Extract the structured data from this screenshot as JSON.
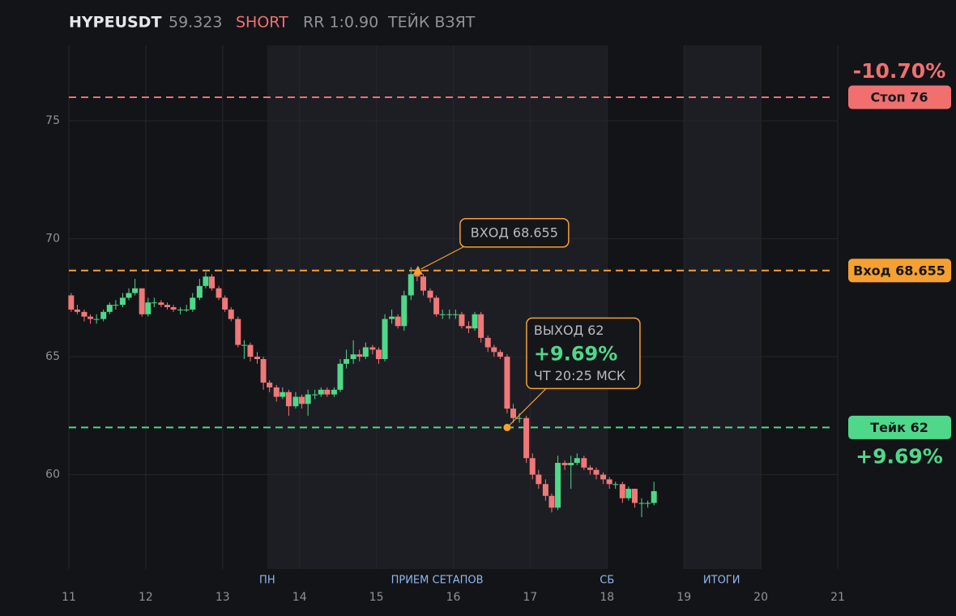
{
  "chart_data": {
    "type": "candlestick",
    "symbol": "HYPEUSDT",
    "price": "59.323",
    "side": "SHORT",
    "rr": "RR 1:0.90",
    "status": "ТЕЙК ВЗЯТ",
    "up_color": "#4fd88a",
    "down_color": "#f07878",
    "grid": true,
    "xlim": [
      11,
      21
    ],
    "xticks": [
      11,
      12,
      13,
      14,
      15,
      16,
      17,
      18,
      19,
      20,
      21
    ],
    "ylim": [
      56,
      78.2
    ],
    "yticks": [
      60,
      65,
      70,
      75
    ],
    "bands": [
      {
        "start": 13.58,
        "end": 18
      },
      {
        "start": 19,
        "end": 20
      }
    ],
    "band_labels": [
      {
        "x": 13.58,
        "text": "ПН"
      },
      {
        "x": 15.79,
        "text": "ПРИЕМ СЕТАПОВ"
      },
      {
        "x": 18,
        "text": "СБ"
      },
      {
        "x": 19.49,
        "text": "ИТОГИ"
      }
    ],
    "levels": [
      {
        "value": 76,
        "label": "Стоп 76",
        "color": "#f07070",
        "change": "-10.70%"
      },
      {
        "value": 68.655,
        "label": "Вход 68.655",
        "color": "#f5a030"
      },
      {
        "value": 62,
        "label": "Тейк 62",
        "color": "#4fd88a",
        "change": "+9.69%"
      }
    ],
    "entry": {
      "x": 15.54,
      "value": 68.655,
      "label": "ВХОД 68.655",
      "color": "#f5a030"
    },
    "exit": {
      "x": 16.7,
      "value": 62,
      "label": "ВЫХОД 62",
      "change": "+9.69%",
      "time": "ЧТ 20:25 МСК",
      "color": "#f5a030"
    },
    "x": [
      11.03,
      11.11,
      11.2,
      11.28,
      11.36,
      11.45,
      11.53,
      11.61,
      11.7,
      11.78,
      11.86,
      11.95,
      12.03,
      12.11,
      12.2,
      12.28,
      12.36,
      12.45,
      12.53,
      12.61,
      12.7,
      12.78,
      12.86,
      12.95,
      13.03,
      13.11,
      13.2,
      13.28,
      13.36,
      13.45,
      13.53,
      13.61,
      13.7,
      13.78,
      13.86,
      13.95,
      14.03,
      14.11,
      14.2,
      14.28,
      14.36,
      14.45,
      14.53,
      14.61,
      14.7,
      14.78,
      14.86,
      14.95,
      15.03,
      15.11,
      15.2,
      15.28,
      15.36,
      15.45,
      15.53,
      15.61,
      15.7,
      15.78,
      15.86,
      15.95,
      16.03,
      16.11,
      16.2,
      16.28,
      16.36,
      16.45,
      16.53,
      16.61,
      16.7,
      16.78,
      16.86,
      16.95,
      17.03,
      17.11,
      17.2,
      17.28,
      17.36,
      17.45,
      17.53,
      17.61,
      17.7,
      17.78,
      17.86,
      17.95,
      18.03,
      18.11,
      18.2,
      18.28,
      18.36,
      18.45,
      18.53,
      18.61
    ],
    "open": [
      67.6,
      67.0,
      66.9,
      66.7,
      66.6,
      66.6,
      66.9,
      67.2,
      67.2,
      67.5,
      67.7,
      67.9,
      66.8,
      67.3,
      67.3,
      67.2,
      67.1,
      67.0,
      67.0,
      67.0,
      67.5,
      68.0,
      68.4,
      67.9,
      67.5,
      67.0,
      66.6,
      65.5,
      65.5,
      65.0,
      64.9,
      63.9,
      63.7,
      63.3,
      63.5,
      62.9,
      63.3,
      63.0,
      63.4,
      63.4,
      63.6,
      63.4,
      63.6,
      64.7,
      64.9,
      65.1,
      65.0,
      65.4,
      65.3,
      64.9,
      66.6,
      66.7,
      66.3,
      67.6,
      68.5,
      68.4,
      67.8,
      67.5,
      66.8,
      66.8,
      66.8,
      66.8,
      66.3,
      66.2,
      66.8,
      65.8,
      65.4,
      65.2,
      65.0,
      62.8,
      62.4,
      62.4,
      60.7,
      60.0,
      59.6,
      59.1,
      58.6,
      60.5,
      60.4,
      60.5,
      60.7,
      60.3,
      60.2,
      60.0,
      59.8,
      59.6,
      59.6,
      59.0,
      59.4,
      58.8,
      58.8,
      58.8
    ],
    "high": [
      67.7,
      67.2,
      67.0,
      66.8,
      66.8,
      67.0,
      67.3,
      67.4,
      67.7,
      67.9,
      68.3,
      67.9,
      67.5,
      67.5,
      67.4,
      67.3,
      67.2,
      67.1,
      67.2,
      67.7,
      68.3,
      68.6,
      68.5,
      68.0,
      67.6,
      67.1,
      66.7,
      65.7,
      65.6,
      65.2,
      65.0,
      64.0,
      63.8,
      63.7,
      63.6,
      63.5,
      63.4,
      63.6,
      63.6,
      63.7,
      63.7,
      63.7,
      64.9,
      65.3,
      65.7,
      65.3,
      65.6,
      65.5,
      65.4,
      66.8,
      67.0,
      66.8,
      67.8,
      68.8,
      68.6,
      68.5,
      67.9,
      67.6,
      67.0,
      67.0,
      67.0,
      66.9,
      66.5,
      66.9,
      66.9,
      65.9,
      65.5,
      65.3,
      65.1,
      63.0,
      62.6,
      62.5,
      60.9,
      60.2,
      59.8,
      59.2,
      60.8,
      60.6,
      60.8,
      60.9,
      60.8,
      60.4,
      60.3,
      60.1,
      59.9,
      59.7,
      59.7,
      59.5,
      59.4,
      59.0,
      58.9,
      59.7
    ],
    "low": [
      66.9,
      66.8,
      66.5,
      66.4,
      66.4,
      66.5,
      66.8,
      67.0,
      67.1,
      67.4,
      67.6,
      66.7,
      66.7,
      67.1,
      67.1,
      67.0,
      66.9,
      66.8,
      66.9,
      66.9,
      67.4,
      67.9,
      67.8,
      67.4,
      66.9,
      66.5,
      65.4,
      64.9,
      64.8,
      64.7,
      63.6,
      63.5,
      63.1,
      63.2,
      62.5,
      62.8,
      62.8,
      62.5,
      63.2,
      63.3,
      63.3,
      63.3,
      63.5,
      64.5,
      64.7,
      64.8,
      64.9,
      65.1,
      64.7,
      64.8,
      66.4,
      66.2,
      66.1,
      67.4,
      68.2,
      67.6,
      67.3,
      66.7,
      66.6,
      66.6,
      66.6,
      66.2,
      66.0,
      66.1,
      65.6,
      65.2,
      65.0,
      64.9,
      62.6,
      62.2,
      62.2,
      60.5,
      59.8,
      59.4,
      58.9,
      58.4,
      58.5,
      60.2,
      59.4,
      60.4,
      60.2,
      60.0,
      59.8,
      59.6,
      59.4,
      59.4,
      58.8,
      58.9,
      58.6,
      58.2,
      58.6,
      58.7
    ],
    "close": [
      67.0,
      66.9,
      66.7,
      66.6,
      66.6,
      66.9,
      67.2,
      67.2,
      67.5,
      67.7,
      67.9,
      66.8,
      67.3,
      67.3,
      67.2,
      67.1,
      67.0,
      67.0,
      67.0,
      67.5,
      68.0,
      68.4,
      67.9,
      67.5,
      67.0,
      66.6,
      65.5,
      65.5,
      65.0,
      64.9,
      63.9,
      63.7,
      63.3,
      63.5,
      62.9,
      63.3,
      63.0,
      63.4,
      63.4,
      63.6,
      63.4,
      63.6,
      64.7,
      64.9,
      65.1,
      65.0,
      65.4,
      65.3,
      64.9,
      66.6,
      66.7,
      66.3,
      67.6,
      68.5,
      68.4,
      67.8,
      67.5,
      66.8,
      66.8,
      66.8,
      66.8,
      66.3,
      66.2,
      66.8,
      65.8,
      65.4,
      65.2,
      65.0,
      62.8,
      62.4,
      62.4,
      60.7,
      60.0,
      59.6,
      59.1,
      58.6,
      60.5,
      60.4,
      60.5,
      60.7,
      60.3,
      60.2,
      60.0,
      59.8,
      59.6,
      59.6,
      59.0,
      59.4,
      58.8,
      58.8,
      58.8,
      59.3
    ]
  }
}
